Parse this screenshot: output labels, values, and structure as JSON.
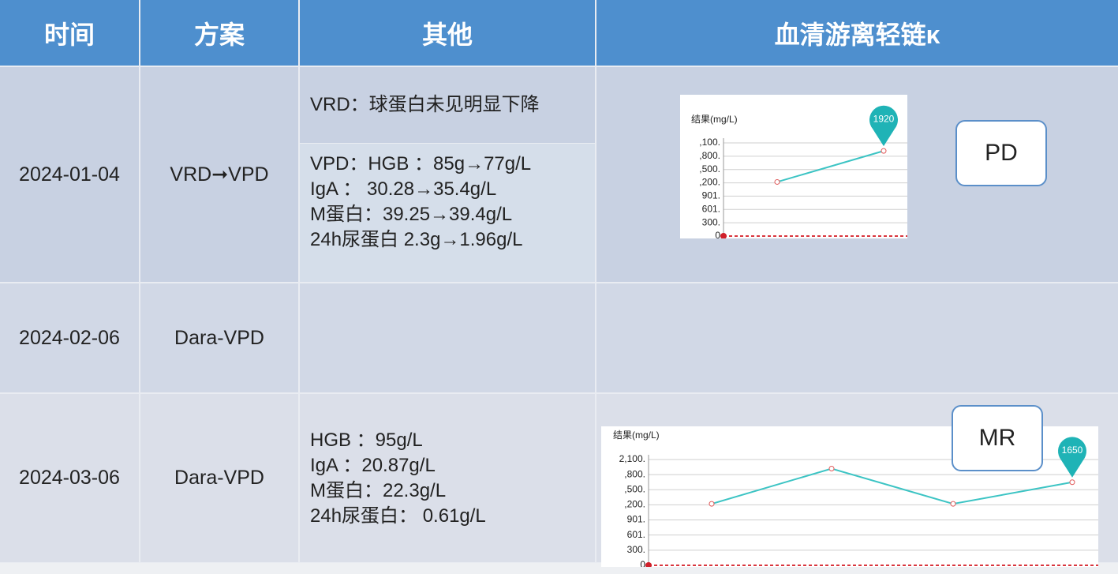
{
  "header": {
    "cells": [
      "时间",
      "方案",
      "其他",
      "血清游离轻链κ"
    ]
  },
  "rows": [
    {
      "date": "2024-01-04",
      "plan": "VRD➞VPD",
      "other": [
        [
          "VRD：球蛋白未见明显下降"
        ],
        [
          "VPD：HGB ：85g→77g/L",
          "IgA ： 30.28→35.4g/L",
          "M蛋白：39.25→39.4g/L",
          "24h尿蛋白 2.3g→1.96g/L"
        ]
      ],
      "status": "PD",
      "chart": {
        "type": "line",
        "ylabel": "结果(mg/L)",
        "values": [
          1220,
          1920
        ],
        "color": "#3cc4c4",
        "ylim": [
          0,
          2100
        ],
        "yticks": [
          {
            "value": 2100,
            "label": ",100."
          },
          {
            "value": 1800,
            "label": ",800."
          },
          {
            "value": 1500,
            "label": ",500."
          },
          {
            "value": 1200,
            "label": ",200."
          },
          {
            "value": 901,
            "label": "901."
          },
          {
            "value": 601,
            "label": "601."
          },
          {
            "value": 300,
            "label": "300."
          },
          0
        ],
        "grid": true
      }
    },
    {
      "date": "2024-02-06",
      "plan": "Dara-VPD"
    },
    {
      "date": "2024-03-06",
      "plan": "Dara-VPD",
      "other": [
        [
          "HGB ：95g/L",
          "IgA ：20.87g/L",
          "M蛋白：22.3g/L",
          "24h尿蛋白： 0.61g/L"
        ]
      ],
      "status": "MR",
      "chart": {
        "type": "line",
        "ylabel": "结果(mg/L)",
        "values": [
          1220,
          1920,
          1220,
          1650
        ],
        "color": "#3cc4c4",
        "ylim": [
          0,
          2100
        ],
        "yticks": [
          {
            "value": 2100,
            "label": "2,100."
          },
          {
            "value": 1800,
            "label": ",800."
          },
          {
            "value": 1500,
            "label": ",500."
          },
          {
            "value": 1200,
            "label": ",200."
          },
          {
            "value": 901,
            "label": "901."
          },
          {
            "value": 601,
            "label": "601."
          },
          {
            "value": 300,
            "label": "300."
          },
          0
        ],
        "grid": true
      }
    }
  ]
}
